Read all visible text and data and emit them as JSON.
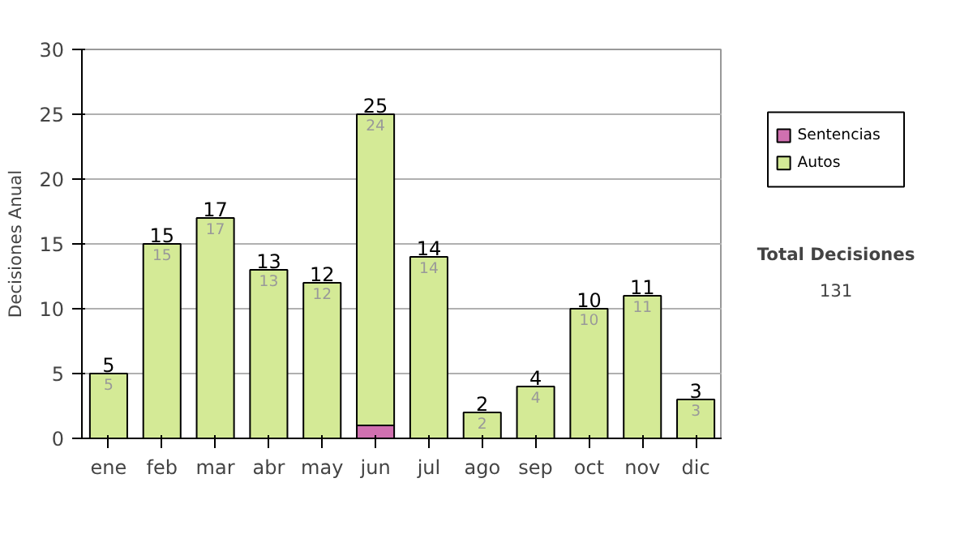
{
  "chart_data": {
    "type": "bar",
    "stacked": true,
    "ylabel": "Decisiones Anual",
    "categories": [
      "ene",
      "feb",
      "mar",
      "abr",
      "may",
      "jun",
      "jul",
      "ago",
      "sep",
      "oct",
      "nov",
      "dic"
    ],
    "series": [
      {
        "name": "Sentencias",
        "color": "#d070b0",
        "values": [
          0,
          0,
          0,
          0,
          0,
          1,
          0,
          0,
          0,
          0,
          0,
          0
        ]
      },
      {
        "name": "Autos",
        "color": "#d4ea96",
        "values": [
          5,
          15,
          17,
          13,
          12,
          24,
          14,
          2,
          4,
          10,
          11,
          3
        ],
        "value_labels": [
          "5",
          "15",
          "17",
          "13",
          "12",
          "24",
          "14",
          "2",
          "4",
          "10",
          "11",
          "3"
        ]
      }
    ],
    "totals": [
      "5",
      "15",
      "17",
      "13",
      "12",
      "25",
      "14",
      "2",
      "4",
      "10",
      "11",
      "3"
    ],
    "ylim": [
      0,
      30
    ],
    "yticks": [
      0,
      5,
      10,
      15,
      20,
      25,
      30
    ],
    "grid": "y",
    "legend": "right",
    "annotations": [
      "Total Decisiones",
      "131"
    ]
  }
}
